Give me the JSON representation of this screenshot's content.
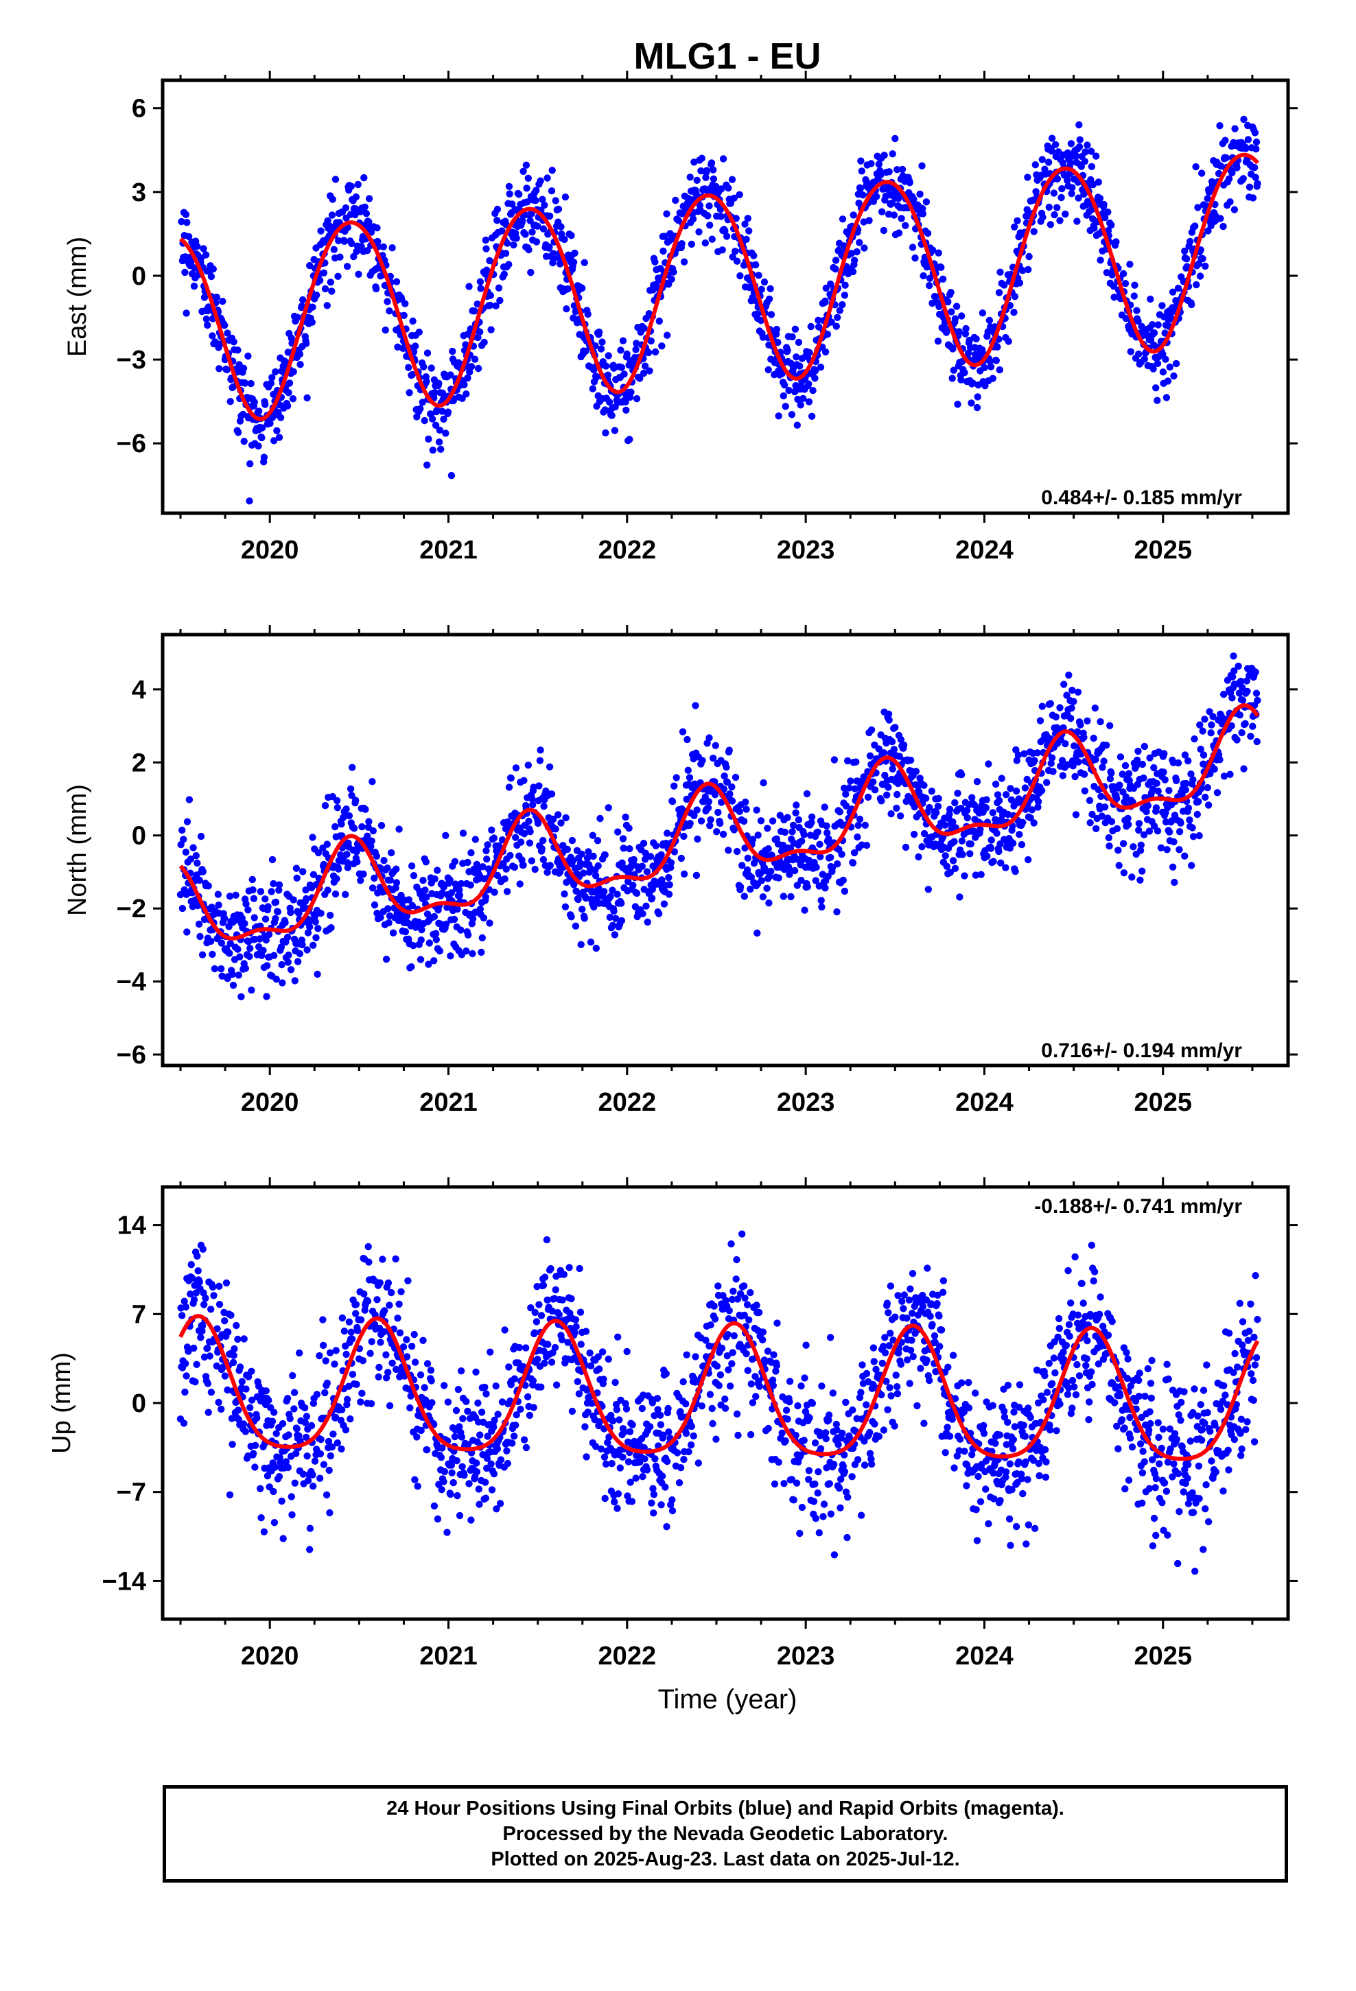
{
  "title": "MLG1 - EU",
  "xlabel": "Time (year)",
  "footer": [
    "24 Hour Positions Using Final Orbits (blue) and Rapid Orbits (magenta).",
    "Processed by the Nevada Geodetic Laboratory.",
    "Plotted on 2025-Aug-23. Last data on 2025-Jul-12."
  ],
  "colors": {
    "points": "#0000ff",
    "fit": "#ff0000",
    "frame": "#000000"
  },
  "chart_data": [
    {
      "type": "scatter",
      "component": "east",
      "ylabel": "East (mm)",
      "rate": "0.484+/- 0.185 mm/yr",
      "xlim": [
        2019.4,
        2025.7
      ],
      "ylim": [
        -8.5,
        7.0
      ],
      "xticks": [
        2020,
        2021,
        2022,
        2023,
        2024,
        2025
      ],
      "yticks": [
        -6,
        -3,
        0,
        3,
        6
      ],
      "fit": {
        "offset": -0.3,
        "trend": 0.484,
        "t0": 2022.5,
        "annual_amplitude": 3.4,
        "annual_peak": 2022.45,
        "semiannual_amplitude": 0.2,
        "semiannual_peak": 2022.2
      },
      "scatter_sigma": 0.8,
      "series": [
        {
          "name": "Final Orbits",
          "color": "#0000ff"
        },
        {
          "name": "Rapid Orbits",
          "color": "#ff00ff"
        }
      ]
    },
    {
      "type": "scatter",
      "component": "north",
      "ylabel": "North (mm)",
      "rate": "0.716+/- 0.194 mm/yr",
      "xlim": [
        2019.4,
        2025.7
      ],
      "ylim": [
        -6.3,
        5.5
      ],
      "xticks": [
        2020,
        2021,
        2022,
        2023,
        2024,
        2025
      ],
      "yticks": [
        -6,
        -4,
        -2,
        0,
        2,
        4
      ],
      "fit": {
        "offset": -0.1,
        "trend": 0.716,
        "t0": 2022.5,
        "annual_amplitude": 1.1,
        "annual_peak": 2022.45,
        "semiannual_amplitude": 0.45,
        "semiannual_peak": 2022.45
      },
      "scatter_sigma": 0.75,
      "series": [
        {
          "name": "Final Orbits",
          "color": "#0000ff"
        },
        {
          "name": "Rapid Orbits",
          "color": "#ff00ff"
        }
      ]
    },
    {
      "type": "scatter",
      "component": "up",
      "ylabel": "Up (mm)",
      "rate": "-0.188+/- 0.741 mm/yr",
      "xlim": [
        2019.4,
        2025.7
      ],
      "ylim": [
        -17.0,
        17.0
      ],
      "xticks": [
        2020,
        2021,
        2022,
        2023,
        2024,
        2025
      ],
      "yticks": [
        -14,
        -7,
        0,
        7,
        14
      ],
      "fit": {
        "offset": 0.2,
        "trend": -0.188,
        "t0": 2022.5,
        "annual_amplitude": 5.1,
        "annual_peak": 2022.6,
        "semiannual_amplitude": 1.0,
        "semiannual_peak": 2022.6
      },
      "scatter_sigma": 2.8,
      "series": [
        {
          "name": "Final Orbits",
          "color": "#0000ff"
        },
        {
          "name": "Rapid Orbits",
          "color": "#ff00ff"
        }
      ]
    }
  ]
}
